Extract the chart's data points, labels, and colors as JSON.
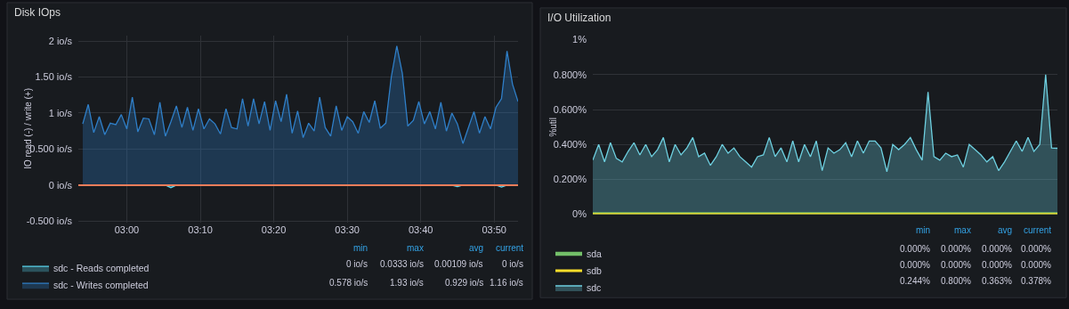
{
  "chart_data": [
    {
      "type": "area",
      "title": "Disk IOps",
      "ylabel": "IO read (-) / write (+)",
      "x": [
        2.9,
        2.9125,
        2.925,
        2.9375,
        2.95,
        2.9625,
        2.975,
        2.9875,
        3.0,
        3.0125,
        3.025,
        3.0375,
        3.05,
        3.0625,
        3.075,
        3.0875,
        3.1,
        3.1125,
        3.125,
        3.1375,
        3.15,
        3.1625,
        3.175,
        3.1875,
        3.2,
        3.2125,
        3.225,
        3.2375,
        3.25,
        3.2625,
        3.275,
        3.2875,
        3.3,
        3.3125,
        3.325,
        3.3375,
        3.35,
        3.3625,
        3.375,
        3.3875,
        3.4,
        3.4125,
        3.425,
        3.4375,
        3.45,
        3.4625,
        3.475,
        3.4875,
        3.5,
        3.5125,
        3.525,
        3.5375,
        3.55,
        3.5625,
        3.575,
        3.5875,
        3.6,
        3.6125,
        3.625,
        3.6375,
        3.65,
        3.6625,
        3.675,
        3.6875,
        3.7,
        3.7125,
        3.725,
        3.7375,
        3.75,
        3.7625,
        3.775,
        3.7875,
        3.8,
        3.8125,
        3.825,
        3.8375,
        3.85,
        3.8625,
        3.875,
        3.8875
      ],
      "xlim": [
        2.89,
        3.8875
      ],
      "xticks": [
        {
          "value": 3,
          "label": "03:00"
        },
        {
          "value": 3.1667,
          "label": "03:10"
        },
        {
          "value": 3.3333,
          "label": "03:20"
        },
        {
          "value": 3.5,
          "label": "03:30"
        },
        {
          "value": 3.6667,
          "label": "03:40"
        },
        {
          "value": 3.8333,
          "label": "03:50"
        }
      ],
      "ylim": [
        -0.52,
        2.08
      ],
      "yticks": [
        {
          "value": -0.5,
          "label": "-0.500 io/s"
        },
        {
          "value": 0,
          "label": "0 io/s"
        },
        {
          "value": 0.5,
          "label": "0.500 io/s"
        },
        {
          "value": 1,
          "label": "1 io/s"
        },
        {
          "value": 1.5,
          "label": "1.50 io/s"
        },
        {
          "value": 2,
          "label": "2 io/s"
        }
      ],
      "series": [
        {
          "name": "sdc - Reads completed",
          "color": "#5ad7f0",
          "values": [
            0,
            0,
            0,
            0,
            0,
            0,
            0,
            0,
            0,
            0,
            0,
            0,
            0,
            0,
            0,
            0,
            -0.0333,
            0,
            0,
            0,
            0,
            0,
            0,
            0,
            0,
            0,
            0,
            0,
            0,
            0,
            0,
            0,
            0,
            0,
            0,
            0,
            0,
            0,
            0,
            0,
            0,
            0,
            0,
            0,
            0,
            0,
            0,
            0,
            0,
            0,
            0,
            0,
            0,
            0,
            0,
            0,
            0,
            0,
            0,
            0,
            0,
            0,
            0,
            0,
            0,
            0,
            0,
            0,
            -0.02,
            0,
            0,
            0,
            0,
            0,
            0,
            0,
            -0.025,
            0,
            0,
            0
          ]
        },
        {
          "name": "sdc - Writes completed",
          "color": "#2f7fc8",
          "values": [
            0.85,
            1.12,
            0.73,
            0.95,
            0.7,
            0.86,
            0.84,
            0.98,
            0.78,
            1.22,
            0.74,
            0.93,
            0.92,
            0.7,
            1.15,
            0.68,
            0.88,
            1.1,
            0.8,
            1.08,
            0.76,
            1.06,
            0.78,
            0.92,
            0.85,
            0.71,
            1.06,
            0.8,
            0.78,
            1.2,
            0.82,
            1.2,
            0.85,
            1.16,
            0.76,
            1.17,
            0.88,
            1.26,
            0.72,
            1.03,
            0.66,
            0.86,
            0.75,
            1.22,
            0.8,
            0.68,
            1.1,
            0.76,
            0.95,
            0.88,
            0.72,
            1.02,
            0.87,
            1.17,
            0.79,
            0.86,
            1.5,
            1.93,
            1.55,
            0.82,
            0.9,
            1.16,
            0.85,
            1.02,
            0.78,
            1.15,
            0.75,
            1.0,
            0.85,
            0.578,
            0.8,
            1.02,
            0.72,
            0.95,
            0.78,
            1.08,
            1.2,
            1.86,
            1.4,
            1.16
          ]
        }
      ],
      "ref_lines": [
        {
          "axis": "y",
          "value": 0,
          "color": "#f07d5a"
        }
      ],
      "grid": true,
      "legend": "bottom",
      "annotations": [
        "min",
        "max",
        "avg",
        "current",
        "0 io/s",
        "0.0333 io/s",
        "0.00109 io/s",
        "0 io/s",
        "0.578 io/s",
        "1.93 io/s",
        "0.929 io/s",
        "1.16 io/s"
      ]
    },
    {
      "type": "area",
      "title": "I/O Utilization",
      "ylabel": "%util",
      "categories": [
        null,
        null,
        null,
        null,
        null,
        null,
        null,
        null,
        null,
        null,
        null,
        null,
        null,
        null,
        null,
        null,
        null,
        null,
        null,
        null,
        null,
        null,
        null,
        null,
        null,
        null,
        null,
        null,
        null,
        null,
        null,
        null,
        null,
        null,
        null,
        null,
        null,
        null,
        null,
        null,
        null,
        null,
        null,
        null,
        null,
        null,
        null,
        null,
        null,
        null,
        null,
        null,
        null,
        null,
        null,
        null,
        null,
        null,
        null,
        null,
        null,
        null,
        null,
        null,
        null,
        null,
        null,
        null,
        null,
        null,
        null,
        null,
        null,
        null,
        null,
        null,
        null,
        null,
        null,
        null
      ],
      "ylim": [
        0,
        1
      ],
      "yticks": [
        {
          "value": 0,
          "label": "0%"
        },
        {
          "value": 0.2,
          "label": "0.200%"
        },
        {
          "value": 0.4,
          "label": "0.400%"
        },
        {
          "value": 0.6,
          "label": "0.600%"
        },
        {
          "value": 0.8,
          "label": "0.800%"
        },
        {
          "value": 1,
          "label": "1%"
        }
      ],
      "tick_labels": "y",
      "series": [
        {
          "name": "sda",
          "type": "line",
          "color": "#73bf69",
          "values": [
            0,
            0,
            0,
            0,
            0,
            0,
            0,
            0,
            0,
            0,
            0,
            0,
            0,
            0,
            0,
            0,
            0,
            0,
            0,
            0,
            0,
            0,
            0,
            0,
            0,
            0,
            0,
            0,
            0,
            0,
            0,
            0,
            0,
            0,
            0,
            0,
            0,
            0,
            0,
            0,
            0,
            0,
            0,
            0,
            0,
            0,
            0,
            0,
            0,
            0,
            0,
            0,
            0,
            0,
            0,
            0,
            0,
            0,
            0,
            0,
            0,
            0,
            0,
            0,
            0,
            0,
            0,
            0,
            0,
            0,
            0,
            0,
            0,
            0,
            0,
            0,
            0,
            0,
            0,
            0
          ]
        },
        {
          "name": "sdb",
          "type": "line",
          "color": "#fade2a",
          "values": [
            0,
            0,
            0,
            0,
            0,
            0,
            0,
            0,
            0,
            0,
            0,
            0,
            0,
            0,
            0,
            0,
            0,
            0,
            0,
            0,
            0,
            0,
            0,
            0,
            0,
            0,
            0,
            0,
            0,
            0,
            0,
            0,
            0,
            0,
            0,
            0,
            0,
            0,
            0,
            0,
            0,
            0,
            0,
            0,
            0,
            0,
            0,
            0,
            0,
            0,
            0,
            0,
            0,
            0,
            0,
            0,
            0,
            0,
            0,
            0,
            0,
            0,
            0,
            0,
            0,
            0,
            0,
            0,
            0,
            0,
            0,
            0,
            0,
            0,
            0,
            0,
            0,
            0,
            0,
            0
          ]
        },
        {
          "name": "sdc",
          "color": "#6ed0e0",
          "values": [
            0.31,
            0.4,
            0.3,
            0.41,
            0.32,
            0.3,
            0.36,
            0.41,
            0.34,
            0.4,
            0.33,
            0.37,
            0.44,
            0.3,
            0.4,
            0.34,
            0.38,
            0.44,
            0.33,
            0.35,
            0.28,
            0.33,
            0.4,
            0.35,
            0.38,
            0.33,
            0.3,
            0.27,
            0.33,
            0.34,
            0.44,
            0.33,
            0.38,
            0.3,
            0.42,
            0.3,
            0.4,
            0.33,
            0.42,
            0.25,
            0.38,
            0.35,
            0.37,
            0.41,
            0.33,
            0.42,
            0.35,
            0.42,
            0.42,
            0.38,
            0.244,
            0.4,
            0.37,
            0.4,
            0.44,
            0.37,
            0.31,
            0.7,
            0.33,
            0.31,
            0.35,
            0.33,
            0.34,
            0.27,
            0.4,
            0.37,
            0.34,
            0.3,
            0.33,
            0.25,
            0.3,
            0.36,
            0.42,
            0.36,
            0.44,
            0.36,
            0.4,
            0.8,
            0.38,
            0.378
          ]
        }
      ],
      "grid": "y",
      "legend": "bottom",
      "annotations": [
        "min",
        "max",
        "avg",
        "current",
        "0.000%",
        "0.000%",
        "0.000%",
        "0.000%",
        "0.000%",
        "0.000%",
        "0.000%",
        "0.000%",
        "0.244%",
        "0.800%",
        "0.363%",
        "0.378%"
      ]
    }
  ]
}
